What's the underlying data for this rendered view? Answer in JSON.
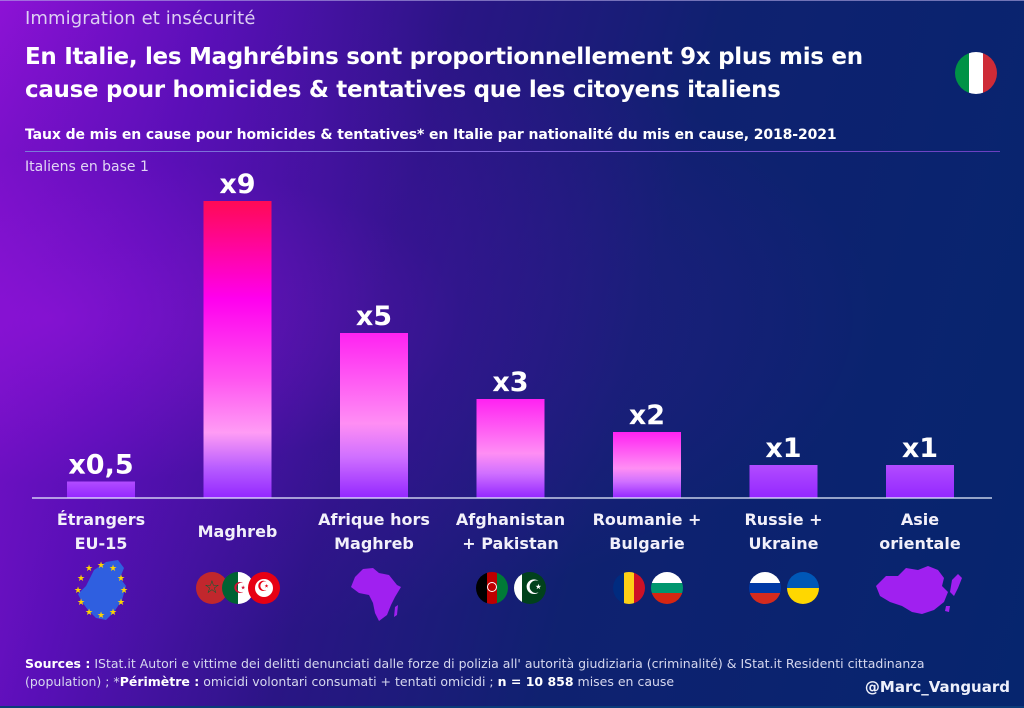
{
  "header": {
    "kicker": "Immigration et insécurité",
    "title_line1": "En Italie, les Maghrébins sont proportionnellement 9x plus mis en",
    "title_line2": "cause pour homicides & tentatives que les citoyens italiens",
    "subtitle": "Taux de mis en cause pour homicides & tentatives* en Italie par nationalité du mis en cause, 2018-2021",
    "base_note": "Italiens en base 1",
    "flag_icon": "italy-flag-icon"
  },
  "colors": {
    "bar_top_max": "#ff0a55",
    "bar_mid": "#ff00ee",
    "bar_light": "#ff8cf5",
    "bar_bottom": "#9a2cff",
    "baseline": "#e8f0ff",
    "italy": [
      "#009246",
      "#ffffff",
      "#ce2b37"
    ]
  },
  "chart_data": {
    "type": "bar",
    "title": "Taux de mis en cause pour homicides & tentatives* en Italie par nationalité du mis en cause, 2018-2021",
    "xlabel": "",
    "ylabel": "Italiens en base 1",
    "ylim": [
      0,
      9
    ],
    "grid": false,
    "categories": [
      "Étrangers EU-15",
      "Maghreb",
      "Afrique hors Maghreb",
      "Afghanistan + Pakistan",
      "Roumanie + Bulgarie",
      "Russie + Ukraine",
      "Asie orientale"
    ],
    "category_lines": [
      [
        "Étrangers",
        "EU-15"
      ],
      [
        "Maghreb"
      ],
      [
        "Afrique hors",
        "Maghreb"
      ],
      [
        "Afghanistan",
        "+ Pakistan"
      ],
      [
        "Roumanie +",
        "Bulgarie"
      ],
      [
        "Russie +",
        "Ukraine"
      ],
      [
        "Asie",
        "orientale"
      ]
    ],
    "values": [
      0.5,
      9,
      5,
      3,
      2,
      1,
      1
    ],
    "data_labels": [
      "x0,5",
      "x9",
      "x5",
      "x3",
      "x2",
      "x1",
      "x1"
    ],
    "category_icons": [
      [
        "eu-map-icon"
      ],
      [
        "morocco-flag-icon",
        "algeria-flag-icon",
        "tunisia-flag-icon"
      ],
      [
        "africa-map-icon"
      ],
      [
        "afghanistan-flag-icon",
        "pakistan-flag-icon"
      ],
      [
        "romania-flag-icon",
        "bulgaria-flag-icon"
      ],
      [
        "russia-flag-icon",
        "ukraine-flag-icon"
      ],
      [
        "east-asia-map-icon"
      ]
    ]
  },
  "footer": {
    "sources_label": "Sources :",
    "sources_text": " IStat.it Autori e vittime dei delitti denunciati dalle forze di polizia all' autorità giudiziaria (criminalité) & IStat.it Residenti cittadinanza (population) ; *",
    "perimetre_label": "Périmètre :",
    "perimetre_text": " omicidi volontari consumati + tentati omicidi ; ",
    "n_label": "n = 10 858",
    "n_text": " mises en cause",
    "handle": "@Marc_Vanguard"
  }
}
